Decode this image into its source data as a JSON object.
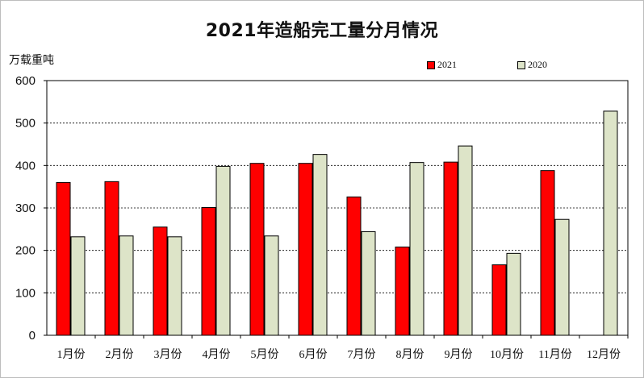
{
  "chart_data": {
    "type": "bar",
    "title": "2021年造船完工量分月情况",
    "ylabel": "万载重吨",
    "xlabel": "",
    "ylim": [
      0,
      600
    ],
    "yticks": [
      0,
      100,
      200,
      300,
      400,
      500,
      600
    ],
    "grid": true,
    "legend_position": "top-right",
    "categories": [
      "1月份",
      "2月份",
      "3月份",
      "4月份",
      "5月份",
      "6月份",
      "7月份",
      "8月份",
      "9月份",
      "10月份",
      "11月份",
      "12月份"
    ],
    "series": [
      {
        "name": "2021",
        "color": "#ff0000",
        "values": [
          360,
          362,
          255,
          301,
          405,
          405,
          326,
          208,
          408,
          166,
          388,
          null
        ]
      },
      {
        "name": "2020",
        "color": "#dde4c8",
        "values": [
          232,
          234,
          232,
          398,
          234,
          426,
          244,
          407,
          446,
          193,
          273,
          528
        ]
      }
    ]
  }
}
